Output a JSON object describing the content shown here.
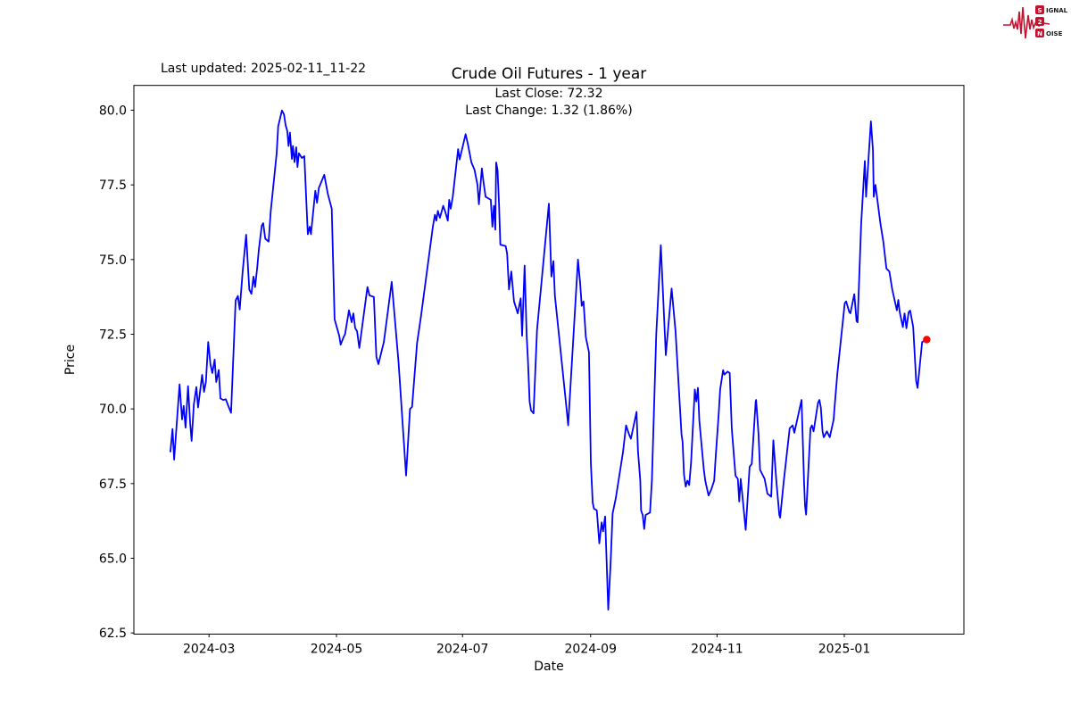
{
  "header": {
    "last_updated": "Last updated: 2025-02-11_11-22"
  },
  "logo": {
    "row1_initial": "S",
    "row1_rest": "IGNAL",
    "row2_initial": "2",
    "row2_rest": "",
    "row3_initial": "N",
    "row3_rest": "OISE",
    "accent_color": "#c41231",
    "text_color": "#1a1a1a"
  },
  "chart_data": {
    "type": "line",
    "title": "Crude Oil Futures - 1 year",
    "subtitle_line1": "Last Close: 72.32",
    "subtitle_line2": "Last Change: 1.32 (1.86%)",
    "xlabel": "Date",
    "ylabel": "Price",
    "last_close": 72.32,
    "last_change": 1.32,
    "last_change_pct": 1.86,
    "line_color": "#0000ff",
    "marker_color": "#ff0000",
    "frame_color": "#000000",
    "start_date": "2024-02-11",
    "grid": false,
    "legend": "none",
    "xlim_days": [
      -17.6,
      382.2
    ],
    "ylim": [
      62.46,
      80.83
    ],
    "y_ticks": [
      {
        "label": "62.5",
        "value": 62.5
      },
      {
        "label": "65.0",
        "value": 65.0
      },
      {
        "label": "67.5",
        "value": 67.5
      },
      {
        "label": "70.0",
        "value": 70.0
      },
      {
        "label": "72.5",
        "value": 72.5
      },
      {
        "label": "75.0",
        "value": 75.0
      },
      {
        "label": "77.5",
        "value": 77.5
      },
      {
        "label": "80.0",
        "value": 80.0
      }
    ],
    "x_ticks": [
      {
        "label": "2024-03",
        "day": 18.6
      },
      {
        "label": "2024-05",
        "day": 80.0
      },
      {
        "label": "2024-07",
        "day": 140.7
      },
      {
        "label": "2024-09",
        "day": 202.4
      },
      {
        "label": "2024-11",
        "day": 263.3
      },
      {
        "label": "2025-01",
        "day": 324.6
      }
    ],
    "points": [
      [
        0,
        68.55
      ],
      [
        1,
        69.33
      ],
      [
        1.8,
        68.3
      ],
      [
        4.4,
        70.82
      ],
      [
        5.6,
        69.65
      ],
      [
        6.4,
        70.1
      ],
      [
        7.3,
        69.37
      ],
      [
        8.5,
        70.76
      ],
      [
        9.5,
        69.55
      ],
      [
        10.2,
        68.93
      ],
      [
        11.3,
        70.15
      ],
      [
        12.5,
        70.73
      ],
      [
        13.3,
        70.05
      ],
      [
        15.3,
        71.14
      ],
      [
        16.2,
        70.57
      ],
      [
        17.1,
        70.9
      ],
      [
        18.2,
        72.24
      ],
      [
        19.3,
        71.49
      ],
      [
        20.2,
        71.2
      ],
      [
        21.3,
        71.65
      ],
      [
        22.1,
        70.9
      ],
      [
        23.3,
        71.3
      ],
      [
        24.1,
        70.35
      ],
      [
        25.4,
        70.3
      ],
      [
        26.7,
        70.32
      ],
      [
        27.9,
        70.1
      ],
      [
        29.2,
        69.87
      ],
      [
        31.4,
        73.63
      ],
      [
        32.5,
        73.78
      ],
      [
        33.4,
        73.33
      ],
      [
        34.8,
        74.6
      ],
      [
        36.5,
        75.83
      ],
      [
        38,
        74
      ],
      [
        39,
        73.85
      ],
      [
        40,
        74.43
      ],
      [
        40.8,
        74.08
      ],
      [
        41.8,
        74.73
      ],
      [
        42.6,
        75.33
      ],
      [
        44,
        76.14
      ],
      [
        44.7,
        76.22
      ],
      [
        45.7,
        75.7
      ],
      [
        47.3,
        75.6
      ],
      [
        48.3,
        76.6
      ],
      [
        51.2,
        78.56
      ],
      [
        51.9,
        79.46
      ],
      [
        53.7,
        79.99
      ],
      [
        54.7,
        79.86
      ],
      [
        55.5,
        79.5
      ],
      [
        56.3,
        79.3
      ],
      [
        56.9,
        78.8
      ],
      [
        57.6,
        79.25
      ],
      [
        58.5,
        78.37
      ],
      [
        59,
        78.8
      ],
      [
        59.8,
        78.26
      ],
      [
        60.6,
        78.76
      ],
      [
        61.2,
        78.1
      ],
      [
        61.9,
        78.56
      ],
      [
        63.3,
        78.4
      ],
      [
        64.5,
        78.46
      ],
      [
        65.5,
        76.9
      ],
      [
        66.2,
        75.85
      ],
      [
        67.1,
        76.1
      ],
      [
        67.7,
        75.85
      ],
      [
        69.8,
        77.3
      ],
      [
        70.6,
        76.9
      ],
      [
        71.5,
        77.4
      ],
      [
        74.1,
        77.84
      ],
      [
        75.8,
        77.2
      ],
      [
        77.7,
        76.7
      ],
      [
        79.1,
        73
      ],
      [
        81.3,
        72.45
      ],
      [
        82,
        72.15
      ],
      [
        83.4,
        72.4
      ],
      [
        84.1,
        72.5
      ],
      [
        86,
        73.3
      ],
      [
        87.3,
        72.9
      ],
      [
        88.1,
        73.2
      ],
      [
        89,
        72.7
      ],
      [
        89.9,
        72.6
      ],
      [
        91,
        72.04
      ],
      [
        94.9,
        74.08
      ],
      [
        95.9,
        73.8
      ],
      [
        98,
        73.75
      ],
      [
        99.2,
        71.74
      ],
      [
        100.2,
        71.5
      ],
      [
        102.8,
        72.24
      ],
      [
        106.6,
        74.25
      ],
      [
        109.9,
        71.54
      ],
      [
        113.5,
        67.77
      ],
      [
        115.4,
        70
      ],
      [
        116.4,
        70.07
      ],
      [
        118.8,
        72.2
      ],
      [
        120.7,
        73.1
      ],
      [
        126.4,
        76.1
      ],
      [
        127.4,
        76.5
      ],
      [
        128.1,
        76.3
      ],
      [
        128.8,
        76.63
      ],
      [
        129.8,
        76.4
      ],
      [
        131.4,
        76.8
      ],
      [
        132.4,
        76.6
      ],
      [
        133.6,
        76.3
      ],
      [
        134.3,
        77
      ],
      [
        135,
        76.7
      ],
      [
        136,
        77.1
      ],
      [
        138.6,
        78.7
      ],
      [
        139.3,
        78.35
      ],
      [
        142.2,
        79.2
      ],
      [
        143.2,
        78.9
      ],
      [
        145,
        78.25
      ],
      [
        146.5,
        78
      ],
      [
        147.9,
        77.5
      ],
      [
        148.6,
        76.85
      ],
      [
        150,
        78.05
      ],
      [
        150.8,
        77.6
      ],
      [
        151.8,
        77.1
      ],
      [
        154.3,
        77
      ],
      [
        155.1,
        76.1
      ],
      [
        155.8,
        76.8
      ],
      [
        156.5,
        76
      ],
      [
        156.9,
        78.25
      ],
      [
        157.6,
        78
      ],
      [
        158.3,
        76.8
      ],
      [
        158.9,
        75.5
      ],
      [
        161.5,
        75.45
      ],
      [
        162.2,
        75.2
      ],
      [
        163.1,
        74
      ],
      [
        164.2,
        74.6
      ],
      [
        165.5,
        73.6
      ],
      [
        167.3,
        73.2
      ],
      [
        168.7,
        73.7
      ],
      [
        169.4,
        72.45
      ],
      [
        170.6,
        74.8
      ],
      [
        171.6,
        72.45
      ],
      [
        172.2,
        71.65
      ],
      [
        173,
        70.25
      ],
      [
        173.7,
        69.95
      ],
      [
        174.9,
        69.85
      ],
      [
        176.6,
        72.64
      ],
      [
        182.3,
        76.87
      ],
      [
        183.5,
        74.43
      ],
      [
        184.5,
        74.95
      ],
      [
        185.2,
        73.8
      ],
      [
        190.9,
        69.95
      ],
      [
        191.6,
        69.45
      ],
      [
        196.3,
        75
      ],
      [
        197.3,
        74.25
      ],
      [
        198.1,
        73.45
      ],
      [
        199,
        73.6
      ],
      [
        200.1,
        72.4
      ],
      [
        201.6,
        71.9
      ],
      [
        202.5,
        68.2
      ],
      [
        203.4,
        66.86
      ],
      [
        204,
        66.66
      ],
      [
        205.4,
        66.6
      ],
      [
        206.6,
        65.5
      ],
      [
        207.7,
        66.2
      ],
      [
        208.4,
        65.9
      ],
      [
        209.4,
        66.4
      ],
      [
        210.9,
        63.28
      ],
      [
        212,
        64.8
      ],
      [
        213,
        66.5
      ],
      [
        214.5,
        67
      ],
      [
        218,
        68.55
      ],
      [
        219.5,
        69.45
      ],
      [
        220.9,
        69.15
      ],
      [
        221.8,
        69
      ],
      [
        224.5,
        69.9
      ],
      [
        225.2,
        68.6
      ],
      [
        226.3,
        67.6
      ],
      [
        226.7,
        66.6
      ],
      [
        227.5,
        66.45
      ],
      [
        228.2,
        65.98
      ],
      [
        228.9,
        66.45
      ],
      [
        231,
        66.53
      ],
      [
        231.9,
        67.6
      ],
      [
        234,
        72.5
      ],
      [
        236.2,
        75.48
      ],
      [
        238.6,
        71.8
      ],
      [
        241.4,
        74.03
      ],
      [
        243.3,
        72.6
      ],
      [
        246.2,
        69.15
      ],
      [
        246.7,
        68.9
      ],
      [
        247.4,
        67.8
      ],
      [
        248.2,
        67.4
      ],
      [
        249,
        67.6
      ],
      [
        249.9,
        67.45
      ],
      [
        250.8,
        68.2
      ],
      [
        252.6,
        70.65
      ],
      [
        253.3,
        70.25
      ],
      [
        254.1,
        70.7
      ],
      [
        254.8,
        69.6
      ],
      [
        256.9,
        68
      ],
      [
        257.6,
        67.6
      ],
      [
        259.2,
        67.1
      ],
      [
        260.5,
        67.3
      ],
      [
        261.9,
        67.6
      ],
      [
        262.6,
        68.35
      ],
      [
        264.1,
        69.85
      ],
      [
        264.8,
        70.65
      ],
      [
        266.2,
        71.3
      ],
      [
        266.8,
        71.15
      ],
      [
        268.4,
        71.25
      ],
      [
        269.4,
        71.2
      ],
      [
        270.4,
        69.35
      ],
      [
        272.2,
        67.76
      ],
      [
        273.3,
        67.66
      ],
      [
        274,
        66.9
      ],
      [
        274.7,
        67.66
      ],
      [
        275.4,
        67.16
      ],
      [
        277.1,
        65.95
      ],
      [
        279,
        68.06
      ],
      [
        280,
        68.16
      ],
      [
        281.9,
        70.25
      ],
      [
        282.1,
        70.3
      ],
      [
        283.3,
        69.15
      ],
      [
        284,
        67.96
      ],
      [
        286.2,
        67.66
      ],
      [
        287.6,
        67.16
      ],
      [
        289.4,
        67.06
      ],
      [
        290.4,
        68.95
      ],
      [
        291.9,
        67.56
      ],
      [
        293.3,
        66.45
      ],
      [
        293.7,
        66.36
      ],
      [
        295.4,
        67.56
      ],
      [
        298.3,
        69.35
      ],
      [
        299.7,
        69.45
      ],
      [
        300.5,
        69.2
      ],
      [
        304,
        70.3
      ],
      [
        305.2,
        67.56
      ],
      [
        305.7,
        66.76
      ],
      [
        306.2,
        66.46
      ],
      [
        308.3,
        69.35
      ],
      [
        309,
        69.45
      ],
      [
        309.8,
        69.25
      ],
      [
        311.9,
        70.2
      ],
      [
        312.6,
        70.3
      ],
      [
        313.3,
        70.05
      ],
      [
        314.1,
        69.25
      ],
      [
        314.7,
        69.05
      ],
      [
        316.2,
        69.25
      ],
      [
        317.6,
        69.05
      ],
      [
        319.5,
        69.65
      ],
      [
        319.8,
        69.95
      ],
      [
        321.2,
        71.15
      ],
      [
        324.8,
        73.54
      ],
      [
        325.5,
        73.6
      ],
      [
        327,
        73.24
      ],
      [
        327.5,
        73.2
      ],
      [
        329.4,
        73.84
      ],
      [
        330.5,
        72.94
      ],
      [
        331,
        72.9
      ],
      [
        332.7,
        76.2
      ],
      [
        334.5,
        78.3
      ],
      [
        335.1,
        77.1
      ],
      [
        337.4,
        79.63
      ],
      [
        338.4,
        78.66
      ],
      [
        338.8,
        77.1
      ],
      [
        339.6,
        77.5
      ],
      [
        342,
        76.2
      ],
      [
        343.4,
        75.6
      ],
      [
        344.9,
        74.7
      ],
      [
        346.3,
        74.6
      ],
      [
        347.7,
        74
      ],
      [
        349.9,
        73.3
      ],
      [
        350.6,
        73.65
      ],
      [
        351.3,
        73.24
      ],
      [
        352.8,
        72.74
      ],
      [
        353.6,
        73.2
      ],
      [
        354.5,
        72.7
      ],
      [
        355.6,
        73.24
      ],
      [
        356.3,
        73.29
      ],
      [
        357.8,
        72.74
      ],
      [
        359.2,
        70.94
      ],
      [
        359.9,
        70.7
      ],
      [
        362.1,
        72.24
      ],
      [
        364.3,
        72.32
      ]
    ]
  }
}
